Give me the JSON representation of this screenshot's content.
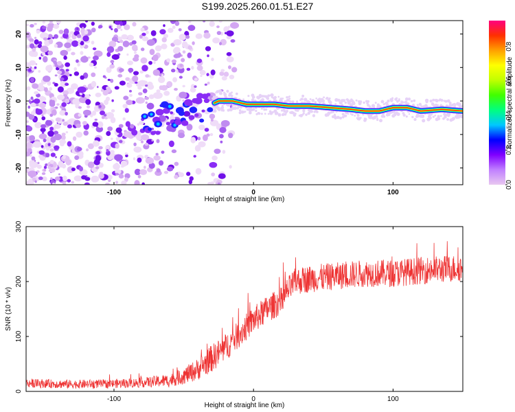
{
  "title": "S199.2025.260.01.51.E27",
  "chart_data": [
    {
      "type": "heatmap",
      "xlabel": "Height of straight line (km)",
      "ylabel": "Frequency (Hz)",
      "xlim": [
        -163,
        150
      ],
      "ylim": [
        -25,
        24
      ],
      "xticks": [
        -100,
        0,
        100
      ],
      "yticks": [
        -20,
        -10,
        0,
        10,
        20
      ],
      "ridge": {
        "description_points_x": [
          -75,
          -65,
          -55,
          -45,
          -35,
          -25,
          -15,
          -5,
          5,
          15,
          25,
          40,
          55,
          70,
          80,
          90,
          100,
          110,
          120,
          135,
          150
        ],
        "description_points_y": [
          -7,
          -4,
          -5,
          -3,
          -2,
          0,
          0,
          -1,
          -1,
          -1,
          -1.5,
          -1.5,
          -2,
          -2.5,
          -3,
          -3,
          -2,
          -2,
          -3,
          -2.5,
          -3
        ]
      },
      "colorbar": {
        "label": "Normalized spectral amplitude",
        "range": [
          0,
          0.95
        ],
        "ticks": [
          "0.0",
          "0.2",
          "0.4",
          "0.6",
          "0.8"
        ],
        "tick_values": [
          0,
          0.2,
          0.4,
          0.6,
          0.8
        ],
        "colors": [
          "#e8c8f0",
          "#c080ff",
          "#8000ff",
          "#0000ff",
          "#00c8ff",
          "#00ff80",
          "#40ff00",
          "#c0ff00",
          "#ffff00",
          "#ffa000",
          "#ff3000",
          "#ff0080"
        ]
      }
    },
    {
      "type": "line",
      "xlabel": "Height of straight line (km)",
      "ylabel": "SNR (10 * v/v)",
      "xlim": [
        -163,
        150
      ],
      "ylim": [
        0,
        300
      ],
      "xticks": [
        -100,
        0,
        100
      ],
      "yticks": [
        0,
        100,
        200,
        300
      ],
      "color": "#ee3333",
      "trend": {
        "x": [
          -163,
          -130,
          -100,
          -80,
          -60,
          -50,
          -40,
          -30,
          -20,
          -10,
          0,
          10,
          20,
          25,
          30,
          40,
          60,
          80,
          100,
          120,
          150
        ],
        "y": [
          15,
          13,
          14,
          16,
          20,
          28,
          40,
          60,
          80,
          105,
          130,
          150,
          165,
          185,
          200,
          205,
          210,
          215,
          215,
          220,
          225
        ]
      },
      "noise_amplitude": [
        8,
        8,
        8,
        9,
        12,
        15,
        20,
        25,
        25,
        25,
        25,
        25,
        25,
        25,
        25,
        25,
        25,
        25,
        25,
        25,
        25
      ]
    }
  ]
}
